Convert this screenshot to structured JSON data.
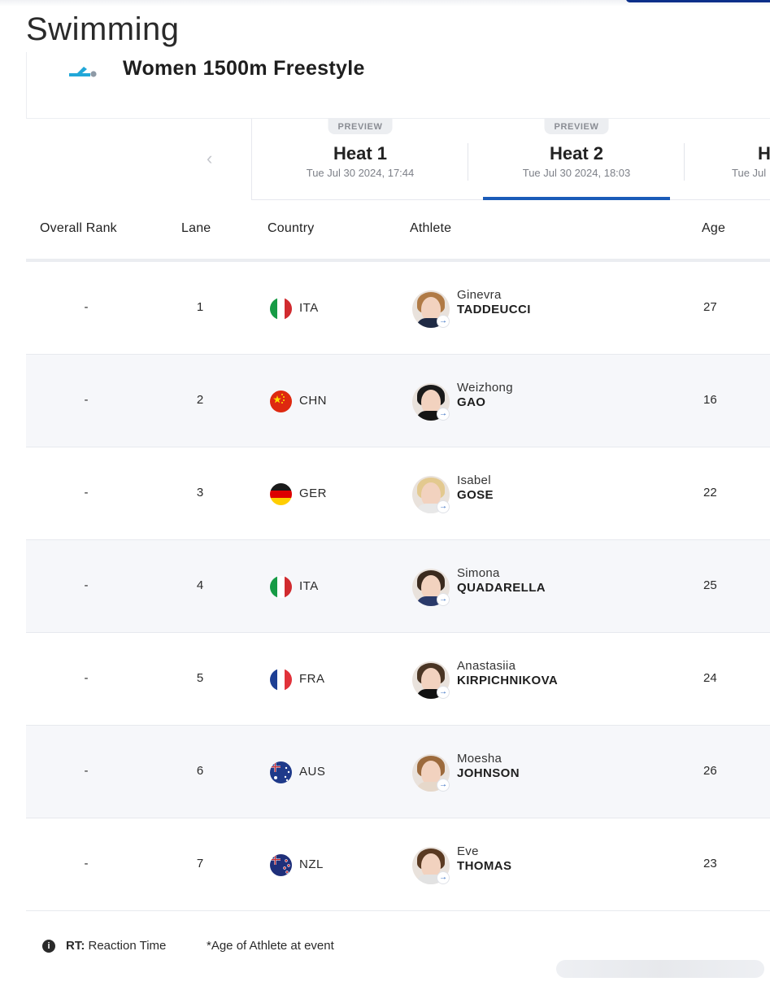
{
  "sport": {
    "title": "Swimming"
  },
  "event": {
    "title": "Women 1500m Freestyle",
    "icon": "swimming-pictogram-icon"
  },
  "heats": [
    {
      "badge": "PREVIEW",
      "name": "Heat 1",
      "time": "Tue Jul 30 2024, 17:44",
      "active": false
    },
    {
      "badge": "PREVIEW",
      "name": "Heat 2",
      "time": "Tue Jul 30 2024, 18:03",
      "active": true
    },
    {
      "badge": "",
      "name": "H",
      "time": "Tue Jul",
      "active": false
    }
  ],
  "table": {
    "headers": {
      "overall_rank": "Overall Rank",
      "lane": "Lane",
      "country": "Country",
      "athlete": "Athlete",
      "age": "Age"
    },
    "rows": [
      {
        "rank": "-",
        "lane": "1",
        "noc": "ITA",
        "given": "Ginevra",
        "family": "TADDEUCCI",
        "age": "27"
      },
      {
        "rank": "-",
        "lane": "2",
        "noc": "CHN",
        "given": "Weizhong",
        "family": "GAO",
        "age": "16"
      },
      {
        "rank": "-",
        "lane": "3",
        "noc": "GER",
        "given": "Isabel",
        "family": "GOSE",
        "age": "22"
      },
      {
        "rank": "-",
        "lane": "4",
        "noc": "ITA",
        "given": "Simona",
        "family": "QUADARELLA",
        "age": "25"
      },
      {
        "rank": "-",
        "lane": "5",
        "noc": "FRA",
        "given": "Anastasiia",
        "family": "KIRPICHNIKOVA",
        "age": "24"
      },
      {
        "rank": "-",
        "lane": "6",
        "noc": "AUS",
        "given": "Moesha",
        "family": "JOHNSON",
        "age": "26"
      },
      {
        "rank": "-",
        "lane": "7",
        "noc": "NZL",
        "given": "Eve",
        "family": "THOMAS",
        "age": "23"
      }
    ]
  },
  "legend": {
    "rt_abbr": "RT:",
    "rt_text": " Reaction Time",
    "age_note": "*Age of Athlete at event"
  },
  "colors": {
    "accent": "#1b5bb8",
    "navy": "#0a2f8a",
    "row_alt": "#f6f7fa"
  }
}
